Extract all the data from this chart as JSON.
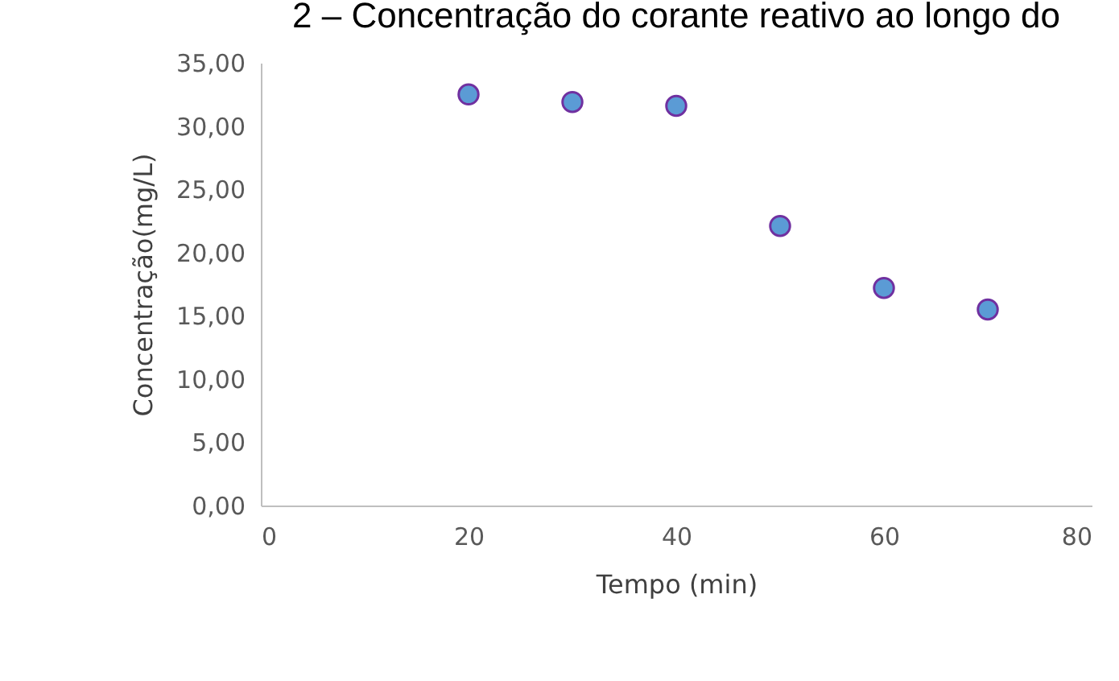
{
  "chart_data": {
    "type": "scatter",
    "title": "2 – Concentração do corante reativo ao longo do",
    "xlabel": "Tempo (min)",
    "ylabel": "Concentração(mg/L)",
    "x": [
      20,
      30,
      40,
      50,
      60,
      70
    ],
    "series": [
      {
        "color": "#5b9bd5",
        "values": [
          32.5,
          31.9,
          31.6,
          22.1,
          17.2,
          15.5
        ]
      }
    ],
    "xlim": [
      0,
      80
    ],
    "xticks": [
      0,
      20,
      40,
      60,
      80
    ],
    "ylim": [
      0,
      35
    ],
    "yticks": [
      {
        "value": 0,
        "label": "0,00"
      },
      {
        "value": 5,
        "label": "5,00"
      },
      {
        "value": 10,
        "label": "10,00"
      },
      {
        "value": 15,
        "label": "15,00"
      },
      {
        "value": 20,
        "label": "20,00"
      },
      {
        "value": 25,
        "label": "25,00"
      },
      {
        "value": 30,
        "label": "30,00"
      },
      {
        "value": 35,
        "label": "35,00"
      }
    ],
    "grid": false,
    "legend": false,
    "marker": "circle"
  }
}
